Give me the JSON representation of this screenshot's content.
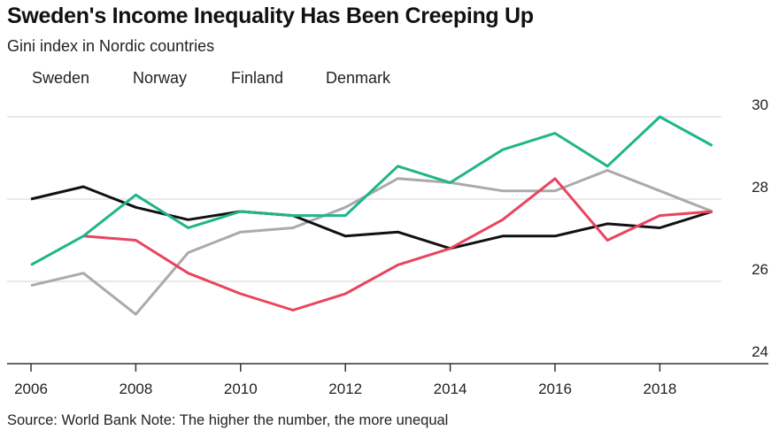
{
  "chart_data": {
    "type": "line",
    "title": "Sweden's Income Inequality Has Been Creeping Up",
    "subtitle": "Gini index in Nordic countries",
    "source": "Source: World Bank Note: The higher the number, the more unequal",
    "x": [
      2006,
      2007,
      2008,
      2009,
      2010,
      2011,
      2012,
      2013,
      2014,
      2015,
      2016,
      2017,
      2018,
      2019
    ],
    "xticks": [
      "2006",
      "2008",
      "2010",
      "2012",
      "2014",
      "2016",
      "2018"
    ],
    "yticks": [
      "24",
      "26",
      "28",
      "30"
    ],
    "ylim": [
      24,
      30
    ],
    "grid": true,
    "legend_placement": "top-left",
    "series": [
      {
        "name": "Sweden",
        "color": "#1fb58a",
        "values": [
          26.4,
          27.1,
          28.1,
          27.3,
          27.7,
          27.6,
          27.6,
          28.8,
          28.4,
          29.2,
          29.6,
          28.8,
          30.0,
          29.3
        ]
      },
      {
        "name": "Norway",
        "color": "#e8455f",
        "values": [
          null,
          27.1,
          27.0,
          26.2,
          25.7,
          25.3,
          25.7,
          26.4,
          26.8,
          27.5,
          28.5,
          27.0,
          27.6,
          27.7
        ]
      },
      {
        "name": "Finland",
        "color": "#111111",
        "values": [
          28.0,
          28.3,
          27.8,
          27.5,
          27.7,
          27.6,
          27.1,
          27.2,
          26.8,
          27.1,
          27.1,
          27.4,
          27.3,
          27.7
        ]
      },
      {
        "name": "Denmark",
        "color": "#aaaaaa",
        "values": [
          25.9,
          26.2,
          25.2,
          26.7,
          27.2,
          27.3,
          27.8,
          28.5,
          28.4,
          28.2,
          28.2,
          28.7,
          28.2,
          27.7
        ]
      }
    ]
  }
}
